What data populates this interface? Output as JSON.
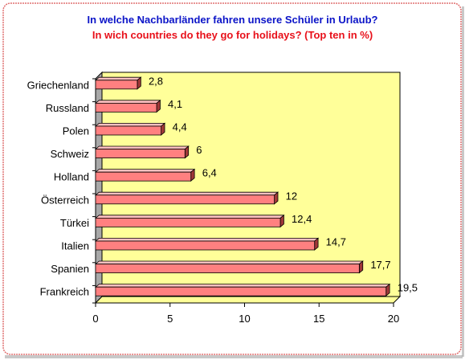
{
  "page": {
    "title_de": "In welche Nachbarländer fahren unsere Schüler in Urlaub?",
    "title_en": "In wich countries do they go for holidays? (Top ten in %)"
  },
  "colors": {
    "title_de": "#0b14c8",
    "title_en": "#e8101a",
    "bar_front": "#ff8080",
    "bar_top": "#ffc0c0",
    "bar_side": "#a03838",
    "wall": "#ffff99",
    "wall_side": "#a8a8a8",
    "frame_border": "#e07070"
  },
  "chart_data": {
    "type": "bar",
    "orientation": "horizontal",
    "categories": [
      "Griechenland",
      "Russland",
      "Polen",
      "Schweiz",
      "Holland",
      "Österreich",
      "Türkei",
      "Italien",
      "Spanien",
      "Frankreich"
    ],
    "values": [
      2.8,
      4.1,
      4.4,
      6,
      6.4,
      12,
      12.4,
      14.7,
      17.7,
      19.5
    ],
    "value_labels": [
      "2,8",
      "4,1",
      "4,4",
      "6",
      "6,4",
      "12",
      "12,4",
      "14,7",
      "17,7",
      "19,5"
    ],
    "xlim": [
      0,
      20
    ],
    "x_ticks": [
      0,
      5,
      10,
      15,
      20
    ],
    "x_tick_labels": [
      "0",
      "5",
      "10",
      "15",
      "20"
    ],
    "grid": false,
    "legend": "none",
    "style": "3d"
  }
}
